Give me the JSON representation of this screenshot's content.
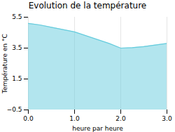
{
  "chart_data": {
    "type": "area",
    "title": "Evolution de la température",
    "x_label": "heure par heure",
    "y_label": "Température en °C",
    "x": [
      0,
      0.25,
      0.5,
      0.75,
      1.0,
      1.25,
      1.5,
      1.75,
      2.0,
      2.25,
      2.5,
      2.75,
      3.0
    ],
    "values": [
      5.1,
      5.0,
      4.85,
      4.7,
      4.55,
      4.3,
      4.05,
      3.8,
      3.5,
      3.53,
      3.6,
      3.7,
      3.8
    ],
    "color": "#66ccdd",
    "xlim": [
      0,
      3
    ],
    "ylim": [
      -0.5,
      5.5
    ],
    "xticks": [
      0,
      1,
      2,
      3
    ],
    "yticks": [
      -0.5,
      1.5,
      3.5,
      5.5
    ],
    "grid": "x"
  }
}
